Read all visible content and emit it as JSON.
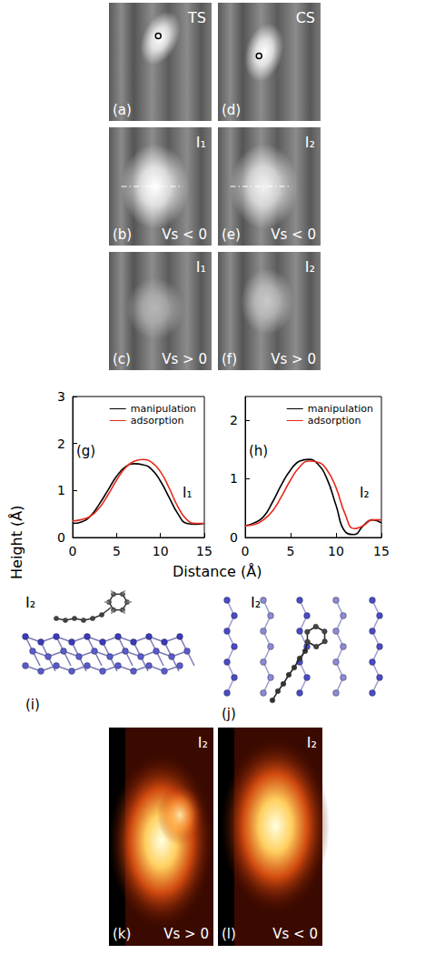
{
  "stm_images": [
    {
      "letter": "(a)",
      "label": "TS"
    },
    {
      "letter": "(d)",
      "label": "CS"
    },
    {
      "letter": "(b)",
      "label": "I₁",
      "bias": "Vs < 0"
    },
    {
      "letter": "(e)",
      "label": "I₂",
      "bias": "Vs < 0"
    },
    {
      "letter": "(c)",
      "label": "I₁",
      "bias": "Vs > 0"
    },
    {
      "letter": "(f)",
      "label": "I₂",
      "bias": "Vs > 0"
    }
  ],
  "axis_titles": {
    "x": "Distance (Å)",
    "y": "Height (Å)"
  },
  "chart_data": [
    {
      "type": "line",
      "letter": "(g)",
      "label": "I₁",
      "x": [
        0,
        1,
        2,
        3,
        4,
        5,
        6,
        7,
        8,
        9,
        10,
        11,
        12,
        13,
        14,
        15
      ],
      "series": [
        {
          "name": "manipulation",
          "color": "#000000",
          "values": [
            0.3,
            0.33,
            0.45,
            0.7,
            1.0,
            1.3,
            1.5,
            1.57,
            1.55,
            1.45,
            1.2,
            0.85,
            0.5,
            0.3,
            0.28,
            0.3
          ]
        },
        {
          "name": "adsorption",
          "color": "#e8291c",
          "values": [
            0.35,
            0.38,
            0.45,
            0.62,
            0.9,
            1.22,
            1.48,
            1.62,
            1.66,
            1.6,
            1.4,
            1.05,
            0.65,
            0.38,
            0.3,
            0.3
          ]
        }
      ],
      "xlim": [
        0,
        15
      ],
      "xticks": [
        0,
        5,
        10,
        15
      ],
      "ylim": [
        0,
        3
      ],
      "yticks": [
        0,
        1,
        2,
        3
      ],
      "legend": "top-right"
    },
    {
      "type": "line",
      "letter": "(h)",
      "label": "I₂",
      "x": [
        0,
        1,
        2,
        3,
        4,
        5,
        6,
        7,
        8,
        9,
        10,
        11,
        12,
        13,
        14,
        15
      ],
      "series": [
        {
          "name": "manipulation",
          "color": "#000000",
          "values": [
            0.2,
            0.25,
            0.35,
            0.6,
            0.9,
            1.15,
            1.3,
            1.33,
            1.25,
            1.0,
            0.55,
            0.1,
            0.05,
            0.2,
            0.3,
            0.25
          ]
        },
        {
          "name": "adsorption",
          "color": "#e8291c",
          "values": [
            0.2,
            0.22,
            0.3,
            0.45,
            0.7,
            0.98,
            1.2,
            1.3,
            1.28,
            1.15,
            0.85,
            0.4,
            0.15,
            0.2,
            0.3,
            0.3
          ]
        }
      ],
      "xlim": [
        0,
        15
      ],
      "xticks": [
        0,
        5,
        10,
        15
      ],
      "ylim": [
        0,
        2.4
      ],
      "yticks": [
        0,
        1,
        2
      ],
      "legend": "top-right"
    }
  ],
  "models": [
    {
      "letter": "(i)",
      "label": "I₂"
    },
    {
      "letter": "(j)",
      "label": "I₂"
    }
  ],
  "simulated_images": [
    {
      "letter": "(k)",
      "label": "I₂",
      "bias": "Vs > 0"
    },
    {
      "letter": "(l)",
      "label": "I₂",
      "bias": "Vs < 0"
    }
  ]
}
